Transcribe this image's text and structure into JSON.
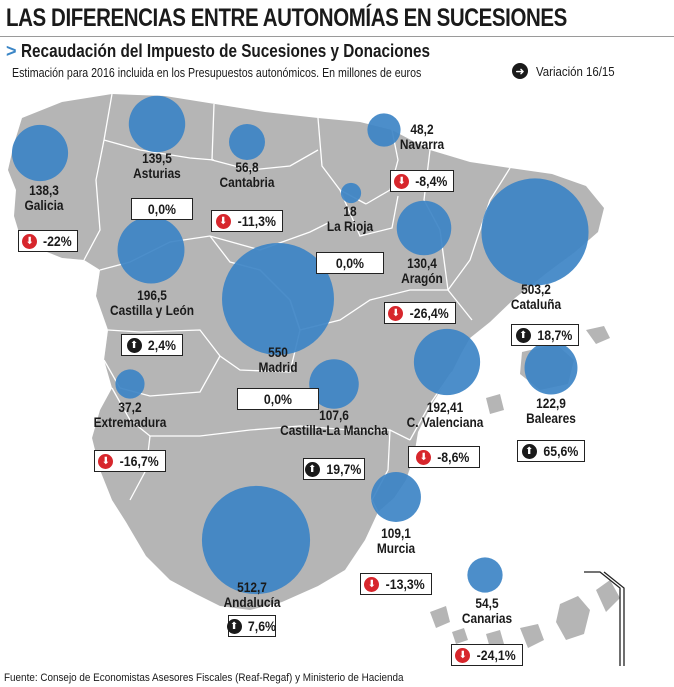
{
  "header": {
    "title": "LAS DIFERENCIAS ENTRE AUTONOMÍAS EN SUCESIONES",
    "subtitle_arrow": ">",
    "subtitle": "Recaudación del Impuesto de Sucesiones y Donaciones",
    "note": "Estimación para 2016 incluida en los Presupuestos autonómicos. En millones de euros",
    "legend_label": "Variación 16/15"
  },
  "colors": {
    "bubble": "#3d84c6",
    "land": "#b5b5b5",
    "border": "#ffffff",
    "down": "#d7262c",
    "up": "#1a1a1a"
  },
  "regions": [
    {
      "name": "Galicia",
      "value": "138,3",
      "change": "-22%",
      "direction": "down"
    },
    {
      "name": "Asturias",
      "value": "139,5",
      "change": "0,0%",
      "direction": "none"
    },
    {
      "name": "Cantabria",
      "value": "56,8",
      "change": "-11,3%",
      "direction": "down"
    },
    {
      "name": "Navarra",
      "value": "48,2",
      "change": "-8,4%",
      "direction": "down"
    },
    {
      "name": "La Rioja",
      "value": "18",
      "change": "0,0%",
      "direction": "none"
    },
    {
      "name": "Aragón",
      "value": "130,4",
      "change": "-26,4%",
      "direction": "down"
    },
    {
      "name": "Cataluña",
      "value": "503,2",
      "change": "18,7%",
      "direction": "up"
    },
    {
      "name": "Castilla y León",
      "value": "196,5",
      "change": "2,4%",
      "direction": "up"
    },
    {
      "name": "Madrid",
      "value": "550",
      "change": "0,0%",
      "direction": "none"
    },
    {
      "name": "Baleares",
      "value": "122,9",
      "change": "65,6%",
      "direction": "up"
    },
    {
      "name": "Extremadura",
      "value": "37,2",
      "change": "-16,7%",
      "direction": "down"
    },
    {
      "name": "Castilla-La Mancha",
      "value": "107,6",
      "change": "19,7%",
      "direction": "up"
    },
    {
      "name": "C. Valenciana",
      "value": "192,41",
      "change": "-8,6%",
      "direction": "down"
    },
    {
      "name": "Murcia",
      "value": "109,1",
      "change": "-13,3%",
      "direction": "down"
    },
    {
      "name": "Andalucía",
      "value": "512,7",
      "change": "7,6%",
      "direction": "up"
    },
    {
      "name": "Canarias",
      "value": "54,5",
      "change": "-24,1%",
      "direction": "down"
    }
  ],
  "source": "Fuente: Consejo de Economistas Asesores Fiscales (Reaf-Regaf) y Ministerio de Hacienda"
}
